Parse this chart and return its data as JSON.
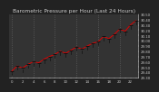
{
  "title": "Barometric Pressure per Hour (Last 24 Hours)",
  "hours": [
    0,
    1,
    2,
    3,
    4,
    5,
    6,
    7,
    8,
    9,
    10,
    11,
    12,
    13,
    14,
    15,
    16,
    17,
    18,
    19,
    20,
    21,
    22,
    23
  ],
  "pressure": [
    29.42,
    29.52,
    29.48,
    29.55,
    29.6,
    29.58,
    29.65,
    29.7,
    29.74,
    29.8,
    29.76,
    29.82,
    29.88,
    29.84,
    29.9,
    29.95,
    29.98,
    30.08,
    30.04,
    30.12,
    30.22,
    30.18,
    30.3,
    30.38
  ],
  "line_color": "#dd0000",
  "marker_color": "#111111",
  "bg_color": "#222222",
  "plot_bg_color": "#333333",
  "grid_color": "#666666",
  "text_color": "#cccccc",
  "ylim_min": 29.3,
  "ylim_max": 30.5,
  "ytick_step": 0.1,
  "title_fontsize": 4.2,
  "tick_fontsize": 2.8,
  "grid_x_positions": [
    0,
    4,
    8,
    12,
    16,
    20,
    24
  ]
}
